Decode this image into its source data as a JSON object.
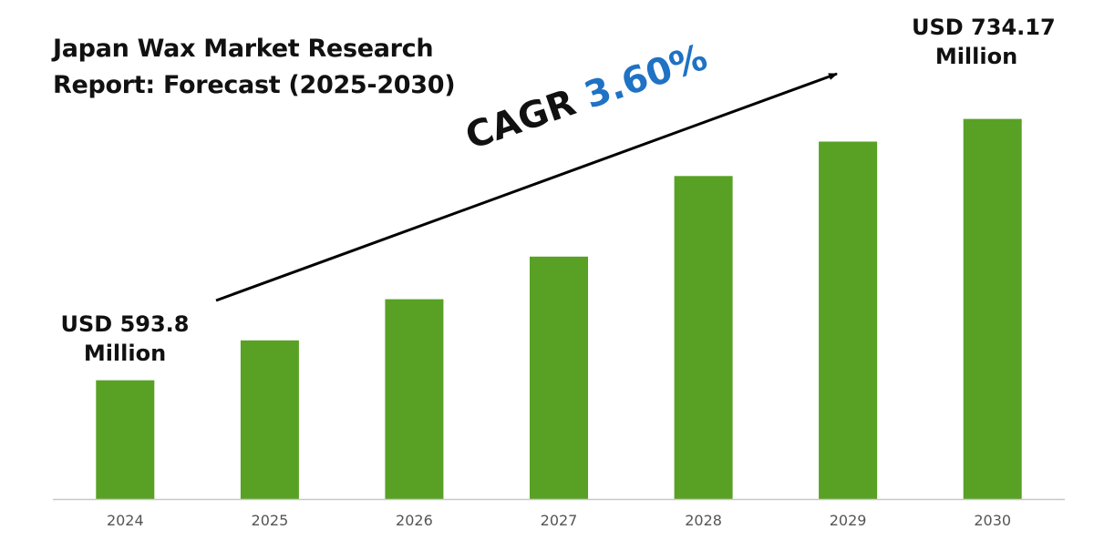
{
  "title_lines": [
    "Japan Wax Market Research",
    "Report: Forecast (2025-2030)"
  ],
  "cagr": {
    "label": "CAGR",
    "value": "3.60%"
  },
  "callouts": {
    "start": {
      "line1": "USD 593.8",
      "line2": "Million"
    },
    "end": {
      "line1": "USD 734.17",
      "line2": "Million"
    }
  },
  "colors": {
    "bar": "#58a125",
    "axis": "#c8c8c8",
    "tick_text": "#555555",
    "arrow": "#000000",
    "cagr_value": "#1f72c4"
  },
  "chart_data": {
    "type": "bar",
    "title": "Japan Wax Market Research Report: Forecast (2025-2030)",
    "categories": [
      "2024",
      "2025",
      "2026",
      "2027",
      "2028",
      "2029",
      "2030"
    ],
    "values": [
      593.8,
      615.2,
      637.3,
      660.2,
      703.5,
      722.0,
      734.17
    ],
    "ylim": [
      530,
      755
    ],
    "ylabel": "",
    "xlabel": "",
    "grid": false,
    "legend": "none"
  }
}
